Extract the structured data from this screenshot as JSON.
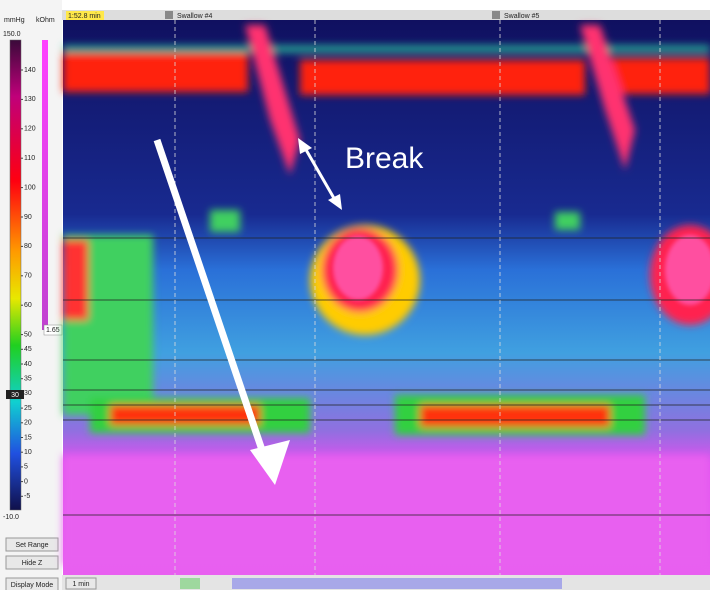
{
  "toolbar": {
    "time": "1:52.8 min",
    "swallow_a": "Swallow #4",
    "swallow_b": "Swallow #5"
  },
  "scale": {
    "unit_left": "mmHg",
    "unit_right": "kOhm",
    "top": "150.0",
    "bottom": "-10.0",
    "labels": [
      "140",
      "130",
      "120",
      "110",
      "100",
      "90",
      "80",
      "70",
      "60",
      "50",
      "45",
      "40",
      "35",
      "30",
      "25",
      "20",
      "15",
      "10",
      "5",
      "0",
      "-5"
    ],
    "marker": "30",
    "impedance": "1.65"
  },
  "buttons": {
    "set_range": "Set Range",
    "hide_z": "Hide Z",
    "display_mode": "Display Mode"
  },
  "annotation": "Break",
  "timeline": {
    "zoom": "1 min"
  }
}
